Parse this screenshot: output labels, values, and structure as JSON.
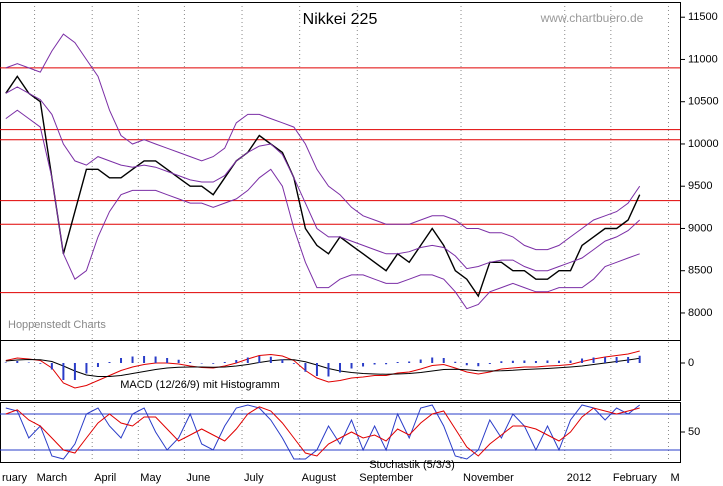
{
  "chart_data": [
    {
      "type": "line",
      "title": "Nikkei 225",
      "source": "www.chartbuero.de",
      "annotation": "Hoppenstedt Charts",
      "categories": [
        "ruary",
        null,
        null,
        "March",
        null,
        null,
        null,
        null,
        "April",
        null,
        null,
        null,
        "May",
        null,
        null,
        null,
        "June",
        null,
        null,
        null,
        null,
        "July",
        null,
        null,
        null,
        null,
        "August",
        null,
        null,
        null,
        null,
        "September",
        null,
        null,
        null,
        null,
        null,
        null,
        null,
        null,
        "November",
        null,
        null,
        null,
        null,
        null,
        null,
        null,
        null,
        "2012",
        null,
        null,
        null,
        "February",
        null,
        null,
        null,
        null,
        "M"
      ],
      "series": [
        {
          "color": "#000000",
          "values": [
            10600,
            10800,
            10600,
            10500,
            9600,
            8700,
            9200,
            9700,
            9700,
            9600,
            9600,
            9700,
            9800,
            9800,
            9700,
            9600,
            9500,
            9500,
            9400,
            9600,
            9800,
            9900,
            10100,
            10000,
            9900,
            9600,
            9000,
            8800,
            8700,
            8900,
            8800,
            8700,
            8600,
            8500,
            8700,
            8600,
            8800,
            9000,
            8800,
            8500,
            8400,
            8200,
            8600,
            8600,
            8500,
            8500,
            8400,
            8400,
            8500,
            8500,
            8800,
            8900,
            9000,
            9000,
            9100,
            9400,
            null,
            null,
            null
          ]
        },
        {
          "color": "#7b2fa6",
          "values": [
            10900,
            10950,
            10900,
            10850,
            11100,
            11300,
            11200,
            11000,
            10800,
            10400,
            10100,
            10000,
            10050,
            10000,
            9950,
            9900,
            9850,
            9800,
            9850,
            9950,
            10250,
            10350,
            10350,
            10300,
            10250,
            10200,
            10000,
            9700,
            9500,
            9400,
            9250,
            9150,
            9100,
            9050,
            9050,
            9050,
            9100,
            9150,
            9150,
            9100,
            9000,
            9000,
            8950,
            8950,
            8900,
            8800,
            8750,
            8750,
            8800,
            8900,
            9000,
            9100,
            9150,
            9200,
            9300,
            9500,
            null,
            null,
            null
          ]
        },
        {
          "color": "#7b2fa6",
          "values": [
            10600,
            10675,
            10600,
            10525,
            10350,
            10000,
            9800,
            9750,
            9850,
            9800,
            9750,
            9725,
            9750,
            9725,
            9675,
            9625,
            9575,
            9550,
            9550,
            9625,
            9800,
            9900,
            9975,
            10000,
            9875,
            9600,
            9300,
            9000,
            8900,
            8900,
            8850,
            8800,
            8750,
            8700,
            8700,
            8725,
            8775,
            8800,
            8775,
            8675,
            8525,
            8550,
            8600,
            8625,
            8625,
            8550,
            8500,
            8500,
            8550,
            8600,
            8650,
            8750,
            8850,
            8900,
            8975,
            9100,
            null,
            null,
            null
          ]
        },
        {
          "color": "#7b2fa6",
          "values": [
            10300,
            10400,
            10300,
            10200,
            9600,
            8700,
            8400,
            8500,
            8900,
            9200,
            9400,
            9450,
            9450,
            9450,
            9400,
            9350,
            9300,
            9300,
            9250,
            9300,
            9350,
            9450,
            9600,
            9700,
            9500,
            9000,
            8600,
            8300,
            8300,
            8400,
            8450,
            8450,
            8400,
            8350,
            8350,
            8400,
            8450,
            8450,
            8400,
            8250,
            8050,
            8100,
            8250,
            8300,
            8350,
            8300,
            8250,
            8250,
            8300,
            8300,
            8300,
            8400,
            8550,
            8600,
            8650,
            8700,
            null,
            null,
            null
          ]
        }
      ],
      "hlines": [
        10900,
        10170,
        10050,
        9330,
        9050,
        8240
      ],
      "hline_color": "#e00000",
      "ylim": [
        7680,
        11680
      ],
      "yticks": [
        8000,
        8500,
        9000,
        9500,
        10000,
        10500,
        11000,
        11500
      ]
    },
    {
      "type": "line",
      "title": "MACD (12/26/9) mit Histogramm",
      "series": [
        {
          "color": "#e00000",
          "values": [
            50,
            100,
            80,
            50,
            -100,
            -400,
            -500,
            -450,
            -350,
            -250,
            -150,
            -80,
            -30,
            0,
            0,
            -20,
            -60,
            -90,
            -100,
            -60,
            0,
            80,
            150,
            170,
            140,
            50,
            -150,
            -300,
            -380,
            -350,
            -300,
            -280,
            -250,
            -250,
            -200,
            -180,
            -120,
            -50,
            -30,
            -100,
            -180,
            -220,
            -180,
            -120,
            -100,
            -80,
            -80,
            -60,
            -50,
            -30,
            30,
            80,
            120,
            150,
            180,
            240,
            null,
            null,
            null
          ]
        },
        {
          "color": "#000000",
          "values": [
            40,
            60,
            70,
            65,
            30,
            -60,
            -160,
            -240,
            -270,
            -270,
            -250,
            -210,
            -170,
            -130,
            -100,
            -85,
            -80,
            -80,
            -85,
            -80,
            -60,
            -30,
            10,
            45,
            65,
            65,
            25,
            -40,
            -110,
            -160,
            -190,
            -210,
            -220,
            -225,
            -220,
            -210,
            -190,
            -160,
            -130,
            -125,
            -135,
            -155,
            -160,
            -155,
            -145,
            -130,
            -120,
            -110,
            -95,
            -80,
            -60,
            -30,
            0,
            30,
            60,
            95,
            null,
            null,
            null
          ]
        },
        {
          "type": "bar",
          "color": "#2a3cc8",
          "values": [
            10,
            40,
            10,
            -15,
            -130,
            -340,
            -340,
            -210,
            -80,
            20,
            100,
            130,
            140,
            130,
            100,
            65,
            20,
            -10,
            -15,
            20,
            60,
            110,
            140,
            125,
            75,
            -15,
            -175,
            -260,
            -270,
            -190,
            -110,
            -70,
            -30,
            -25,
            20,
            30,
            70,
            110,
            100,
            25,
            -45,
            -65,
            -20,
            35,
            45,
            50,
            40,
            50,
            45,
            50,
            90,
            110,
            120,
            120,
            120,
            145,
            null,
            null,
            null
          ]
        }
      ],
      "ylim": [
        -740,
        460
      ],
      "yticks": [
        0
      ]
    },
    {
      "type": "line",
      "title": "Stochastik (5/3/3)",
      "series": [
        {
          "color": "#2a3cc8",
          "values": [
            90,
            85,
            40,
            60,
            10,
            5,
            30,
            80,
            90,
            60,
            40,
            80,
            90,
            50,
            20,
            40,
            80,
            30,
            20,
            60,
            90,
            95,
            90,
            70,
            40,
            5,
            5,
            20,
            60,
            30,
            70,
            20,
            60,
            20,
            80,
            40,
            90,
            95,
            60,
            10,
            5,
            20,
            70,
            40,
            80,
            60,
            20,
            60,
            20,
            70,
            95,
            90,
            70,
            90,
            80,
            95,
            null,
            null,
            null
          ]
        },
        {
          "color": "#e00000",
          "values": [
            80,
            87,
            70,
            60,
            40,
            20,
            15,
            40,
            65,
            80,
            65,
            60,
            75,
            75,
            55,
            35,
            45,
            55,
            45,
            35,
            55,
            80,
            92,
            85,
            65,
            40,
            15,
            10,
            30,
            40,
            50,
            40,
            45,
            35,
            55,
            45,
            65,
            80,
            85,
            55,
            25,
            10,
            30,
            45,
            60,
            60,
            55,
            45,
            35,
            50,
            75,
            90,
            85,
            80,
            85,
            90,
            null,
            null,
            null
          ]
        }
      ],
      "hlines": [
        20,
        80
      ],
      "hline_color": "#2a3cc8",
      "ylim": [
        0,
        100
      ],
      "yticks": [
        50
      ]
    }
  ]
}
